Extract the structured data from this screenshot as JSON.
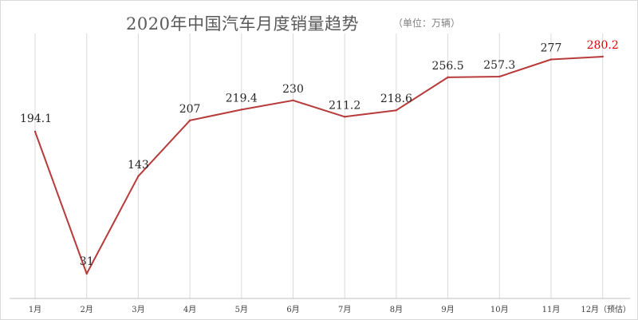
{
  "title": "2020年中国汽车月度销量趋势",
  "subtitle": "（单位：万辆）",
  "chart_data": {
    "type": "line",
    "title": "2020年中国汽车月度销量趋势",
    "subtitle": "（单位：万辆）",
    "categories": [
      "1月",
      "2月",
      "3月",
      "4月",
      "5月",
      "6月",
      "7月",
      "8月",
      "9月",
      "10月",
      "11月",
      "12月（预估）"
    ],
    "series": [
      {
        "values": [
          194.1,
          31,
          143,
          207,
          219.4,
          230,
          211.2,
          218.6,
          256.5,
          257.3,
          277,
          280.2
        ],
        "labels": [
          "194.1",
          "31",
          "143",
          "207",
          "219.4",
          "230",
          "211.2",
          "218.6",
          "256.5",
          "257.3",
          "277",
          "280.2"
        ],
        "color": "#b83b3b"
      }
    ],
    "highlight_label_color": "#e00000",
    "highlight_index": 11,
    "ylim": [
      0,
      300
    ],
    "grid": "vertical"
  }
}
